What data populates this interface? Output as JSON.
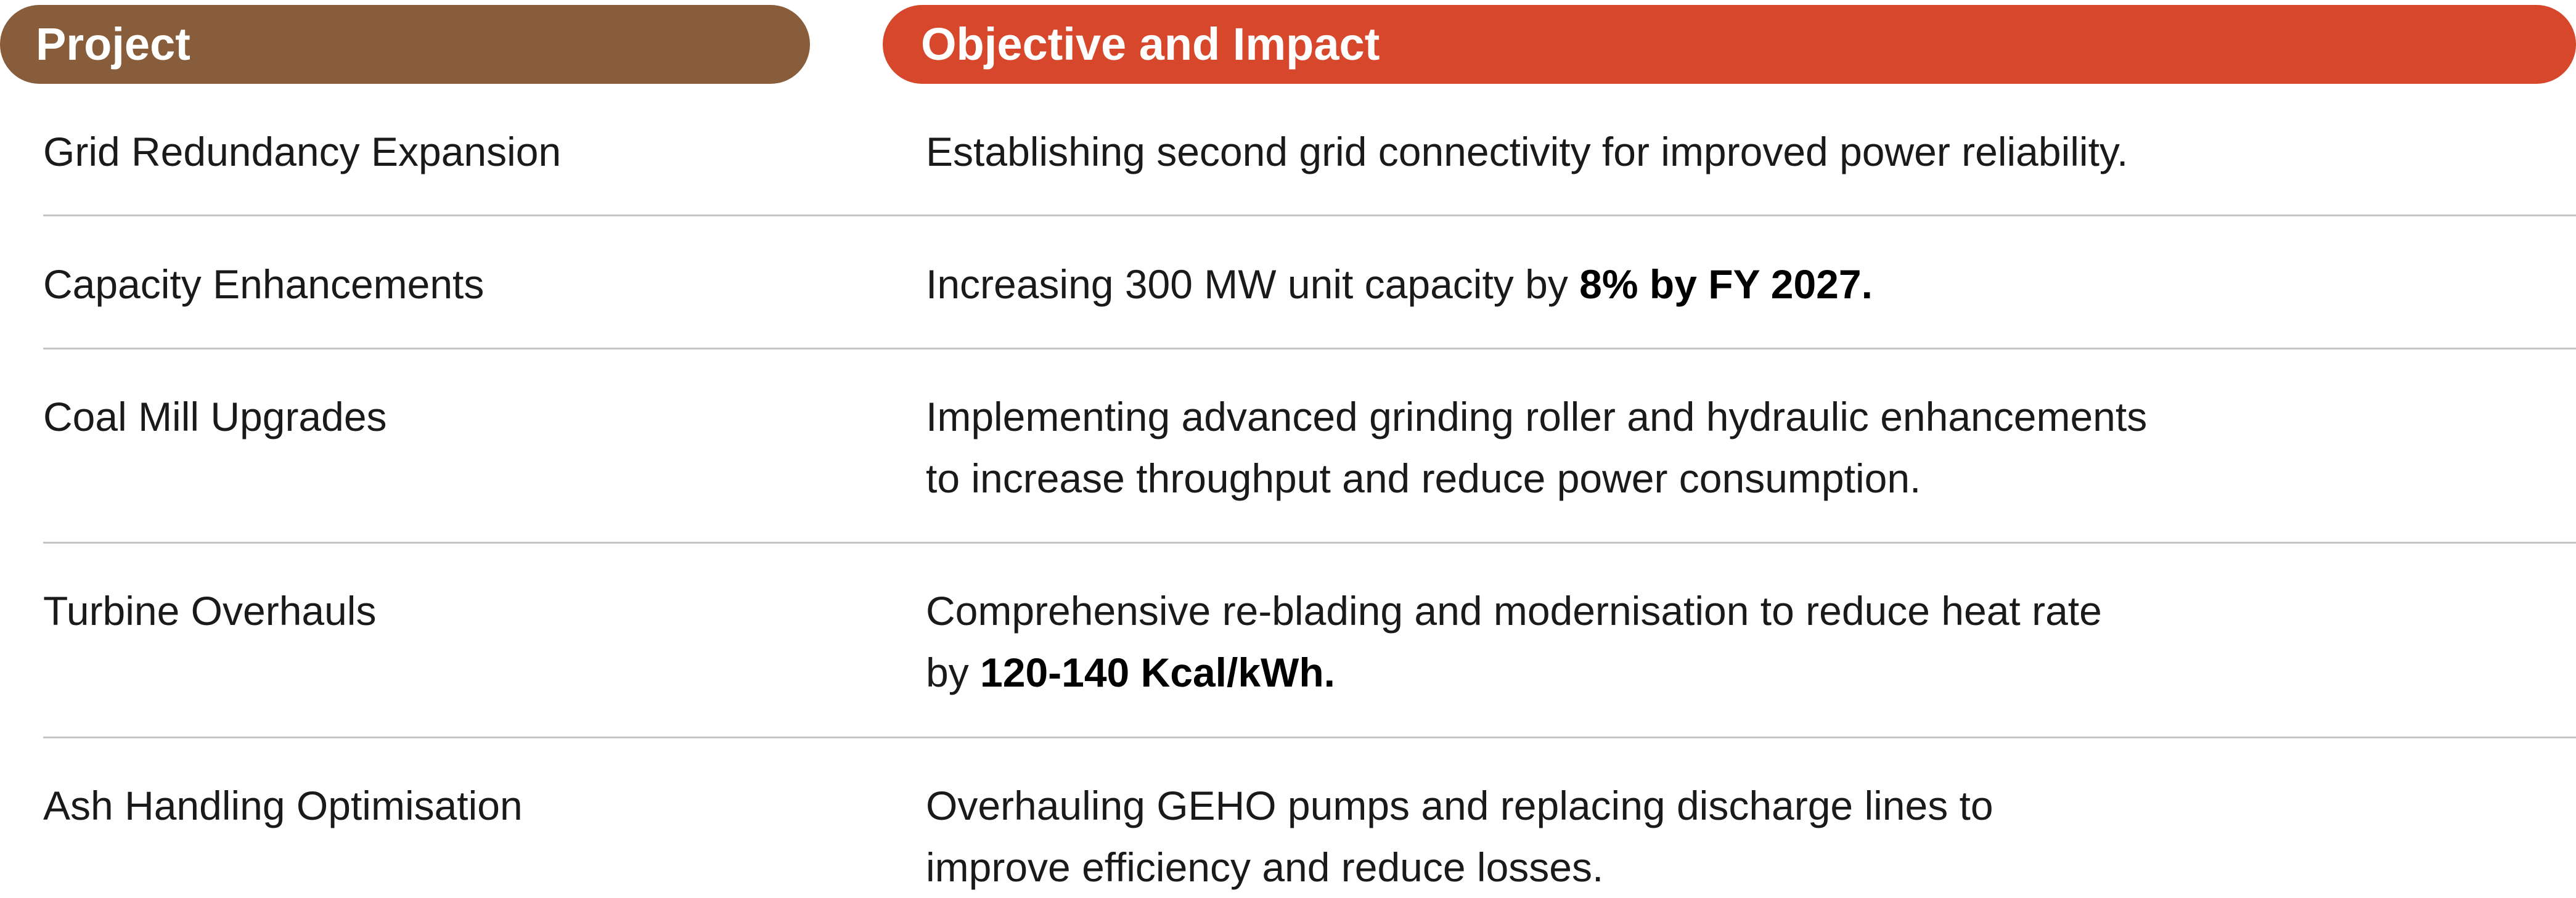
{
  "header": {
    "project_label": "Project",
    "objective_label": "Objective and Impact"
  },
  "colors": {
    "project_header_bg": "#875d3c",
    "objective_header_bg": "#d7472b",
    "header_text": "#ffffff",
    "divider": "#c4c4c4"
  },
  "rows": [
    {
      "project": "Grid Redundancy Expansion",
      "objective": {
        "line1": "Establishing second grid connectivity for improved power reliability."
      }
    },
    {
      "project": "Capacity Enhancements",
      "objective": {
        "line1_text": "Increasing 300 MW unit capacity by ",
        "line1_bold": "8% by FY 2027."
      }
    },
    {
      "project": "Coal Mill Upgrades",
      "objective": {
        "line1": "Implementing advanced grinding roller and hydraulic enhancements",
        "line2": "to increase throughput and reduce power consumption."
      }
    },
    {
      "project": "Turbine Overhauls",
      "objective": {
        "line1": "Comprehensive re-blading and modernisation to reduce heat rate",
        "line2_text": "by ",
        "line2_bold": "120-140 Kcal/kWh."
      }
    },
    {
      "project": "Ash Handling Optimisation",
      "objective": {
        "line1": "Overhauling GEHO pumps and replacing discharge lines to",
        "line2": "improve efficiency and reduce losses."
      }
    }
  ]
}
